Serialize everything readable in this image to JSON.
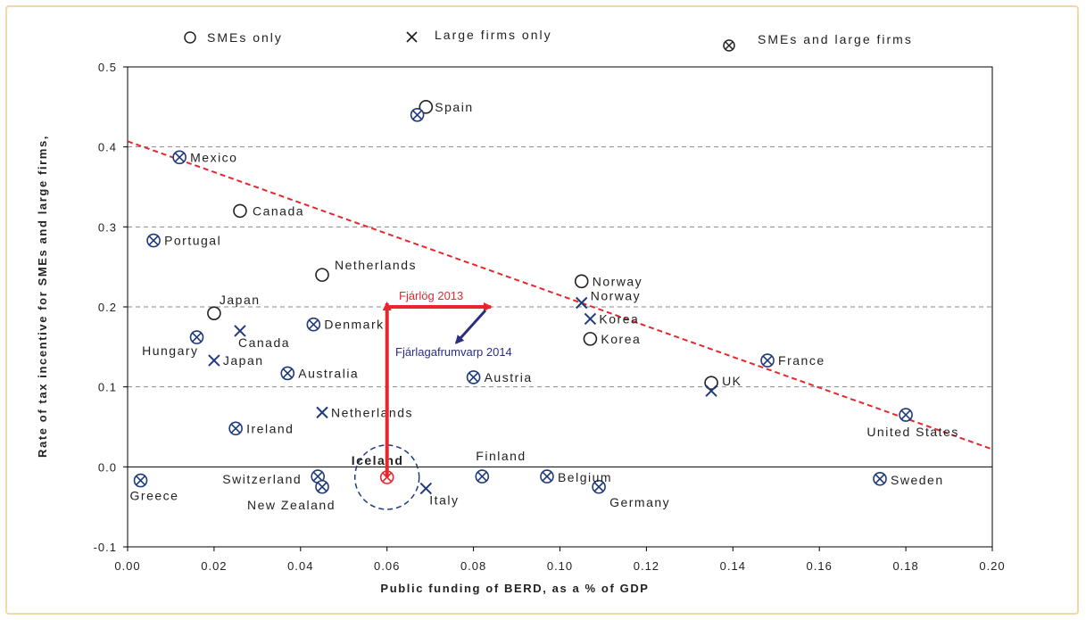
{
  "chart_data": {
    "type": "scatter",
    "title": "",
    "xlabel": "Public funding of BERD, as a % of GDP",
    "ylabel": "Rate of tax incentive for SMEs and large firms,",
    "xlim": [
      0.0,
      0.2
    ],
    "ylim": [
      -0.1,
      0.5
    ],
    "xticks": [
      "0.00",
      "0.02",
      "0.04",
      "0.06",
      "0.08",
      "0.10",
      "0.12",
      "0.14",
      "0.16",
      "0.18",
      "0.20"
    ],
    "yticks": [
      "-0.1",
      "0.0",
      "0.1",
      "0.2",
      "0.3",
      "0.4",
      "0.5"
    ],
    "grid": "horizontal dashed",
    "legend": [
      {
        "name": "SMEs only",
        "marker": "circle"
      },
      {
        "name": "Large firms only",
        "marker": "cross"
      },
      {
        "name": "SMEs and large firms",
        "marker": "circle-cross"
      }
    ],
    "series": [
      {
        "name": "SMEs only",
        "points": [
          {
            "label": "Spain",
            "x": 0.069,
            "y": 0.45
          },
          {
            "label": "Canada",
            "x": 0.026,
            "y": 0.32
          },
          {
            "label": "Netherlands",
            "x": 0.045,
            "y": 0.24
          },
          {
            "label": "Japan",
            "x": 0.02,
            "y": 0.192
          },
          {
            "label": "Norway",
            "x": 0.105,
            "y": 0.232
          },
          {
            "label": "Korea",
            "x": 0.107,
            "y": 0.16
          },
          {
            "label": "UK",
            "x": 0.135,
            "y": 0.105
          }
        ]
      },
      {
        "name": "Large firms only",
        "points": [
          {
            "label": "Canada",
            "x": 0.026,
            "y": 0.17
          },
          {
            "label": "Japan",
            "x": 0.02,
            "y": 0.133
          },
          {
            "label": "Netherlands",
            "x": 0.045,
            "y": 0.068
          },
          {
            "label": "Norway",
            "x": 0.105,
            "y": 0.205
          },
          {
            "label": "Korea",
            "x": 0.107,
            "y": 0.185
          },
          {
            "label": "Italy",
            "x": 0.069,
            "y": -0.027
          },
          {
            "label": "",
            "x": 0.135,
            "y": 0.095
          }
        ]
      },
      {
        "name": "SMEs and large firms",
        "points": [
          {
            "label": "",
            "x": 0.067,
            "y": 0.44
          },
          {
            "label": "Mexico",
            "x": 0.012,
            "y": 0.387
          },
          {
            "label": "Portugal",
            "x": 0.006,
            "y": 0.283
          },
          {
            "label": "Denmark",
            "x": 0.043,
            "y": 0.178
          },
          {
            "label": "Hungary",
            "x": 0.016,
            "y": 0.162
          },
          {
            "label": "Australia",
            "x": 0.037,
            "y": 0.117
          },
          {
            "label": "Austria",
            "x": 0.08,
            "y": 0.112
          },
          {
            "label": "Ireland",
            "x": 0.025,
            "y": 0.048
          },
          {
            "label": "France",
            "x": 0.148,
            "y": 0.133
          },
          {
            "label": "United States",
            "x": 0.18,
            "y": 0.065
          },
          {
            "label": "Greece",
            "x": 0.003,
            "y": -0.017
          },
          {
            "label": "Switzerland",
            "x": 0.044,
            "y": -0.012
          },
          {
            "label": "New Zealand",
            "x": 0.045,
            "y": -0.025
          },
          {
            "label": "Iceland",
            "x": 0.06,
            "y": -0.013
          },
          {
            "label": "Finland",
            "x": 0.082,
            "y": -0.012
          },
          {
            "label": "Belgium",
            "x": 0.097,
            "y": -0.012
          },
          {
            "label": "Germany",
            "x": 0.109,
            "y": -0.025
          },
          {
            "label": "Sweden",
            "x": 0.174,
            "y": -0.015
          }
        ]
      }
    ],
    "trendline": {
      "x0": 0.0,
      "y0": 0.407,
      "x1": 0.2,
      "y1": 0.022,
      "color": "#e8262d"
    },
    "annotations": {
      "fjarlog": {
        "text": "Fjárlög 2013",
        "color": "#e8262d"
      },
      "fjarlagafrumvarp": {
        "text": "Fjárlagafrumvarp 2014",
        "color": "#2b2f7e"
      },
      "arrow_up": {
        "x": 0.06,
        "y_from": -0.013,
        "y_to": 0.2
      },
      "arrow_right": {
        "x_from": 0.06,
        "x_to": 0.084,
        "y": 0.2
      },
      "arrow_diag": {
        "x_from": 0.084,
        "y_from": 0.2,
        "x_to": 0.076,
        "y_to": 0.155
      },
      "iceland_circle": {
        "x": 0.06,
        "y": -0.013
      }
    },
    "marker_color": "#1f3a7a",
    "iceland_color": "#e8262d"
  }
}
